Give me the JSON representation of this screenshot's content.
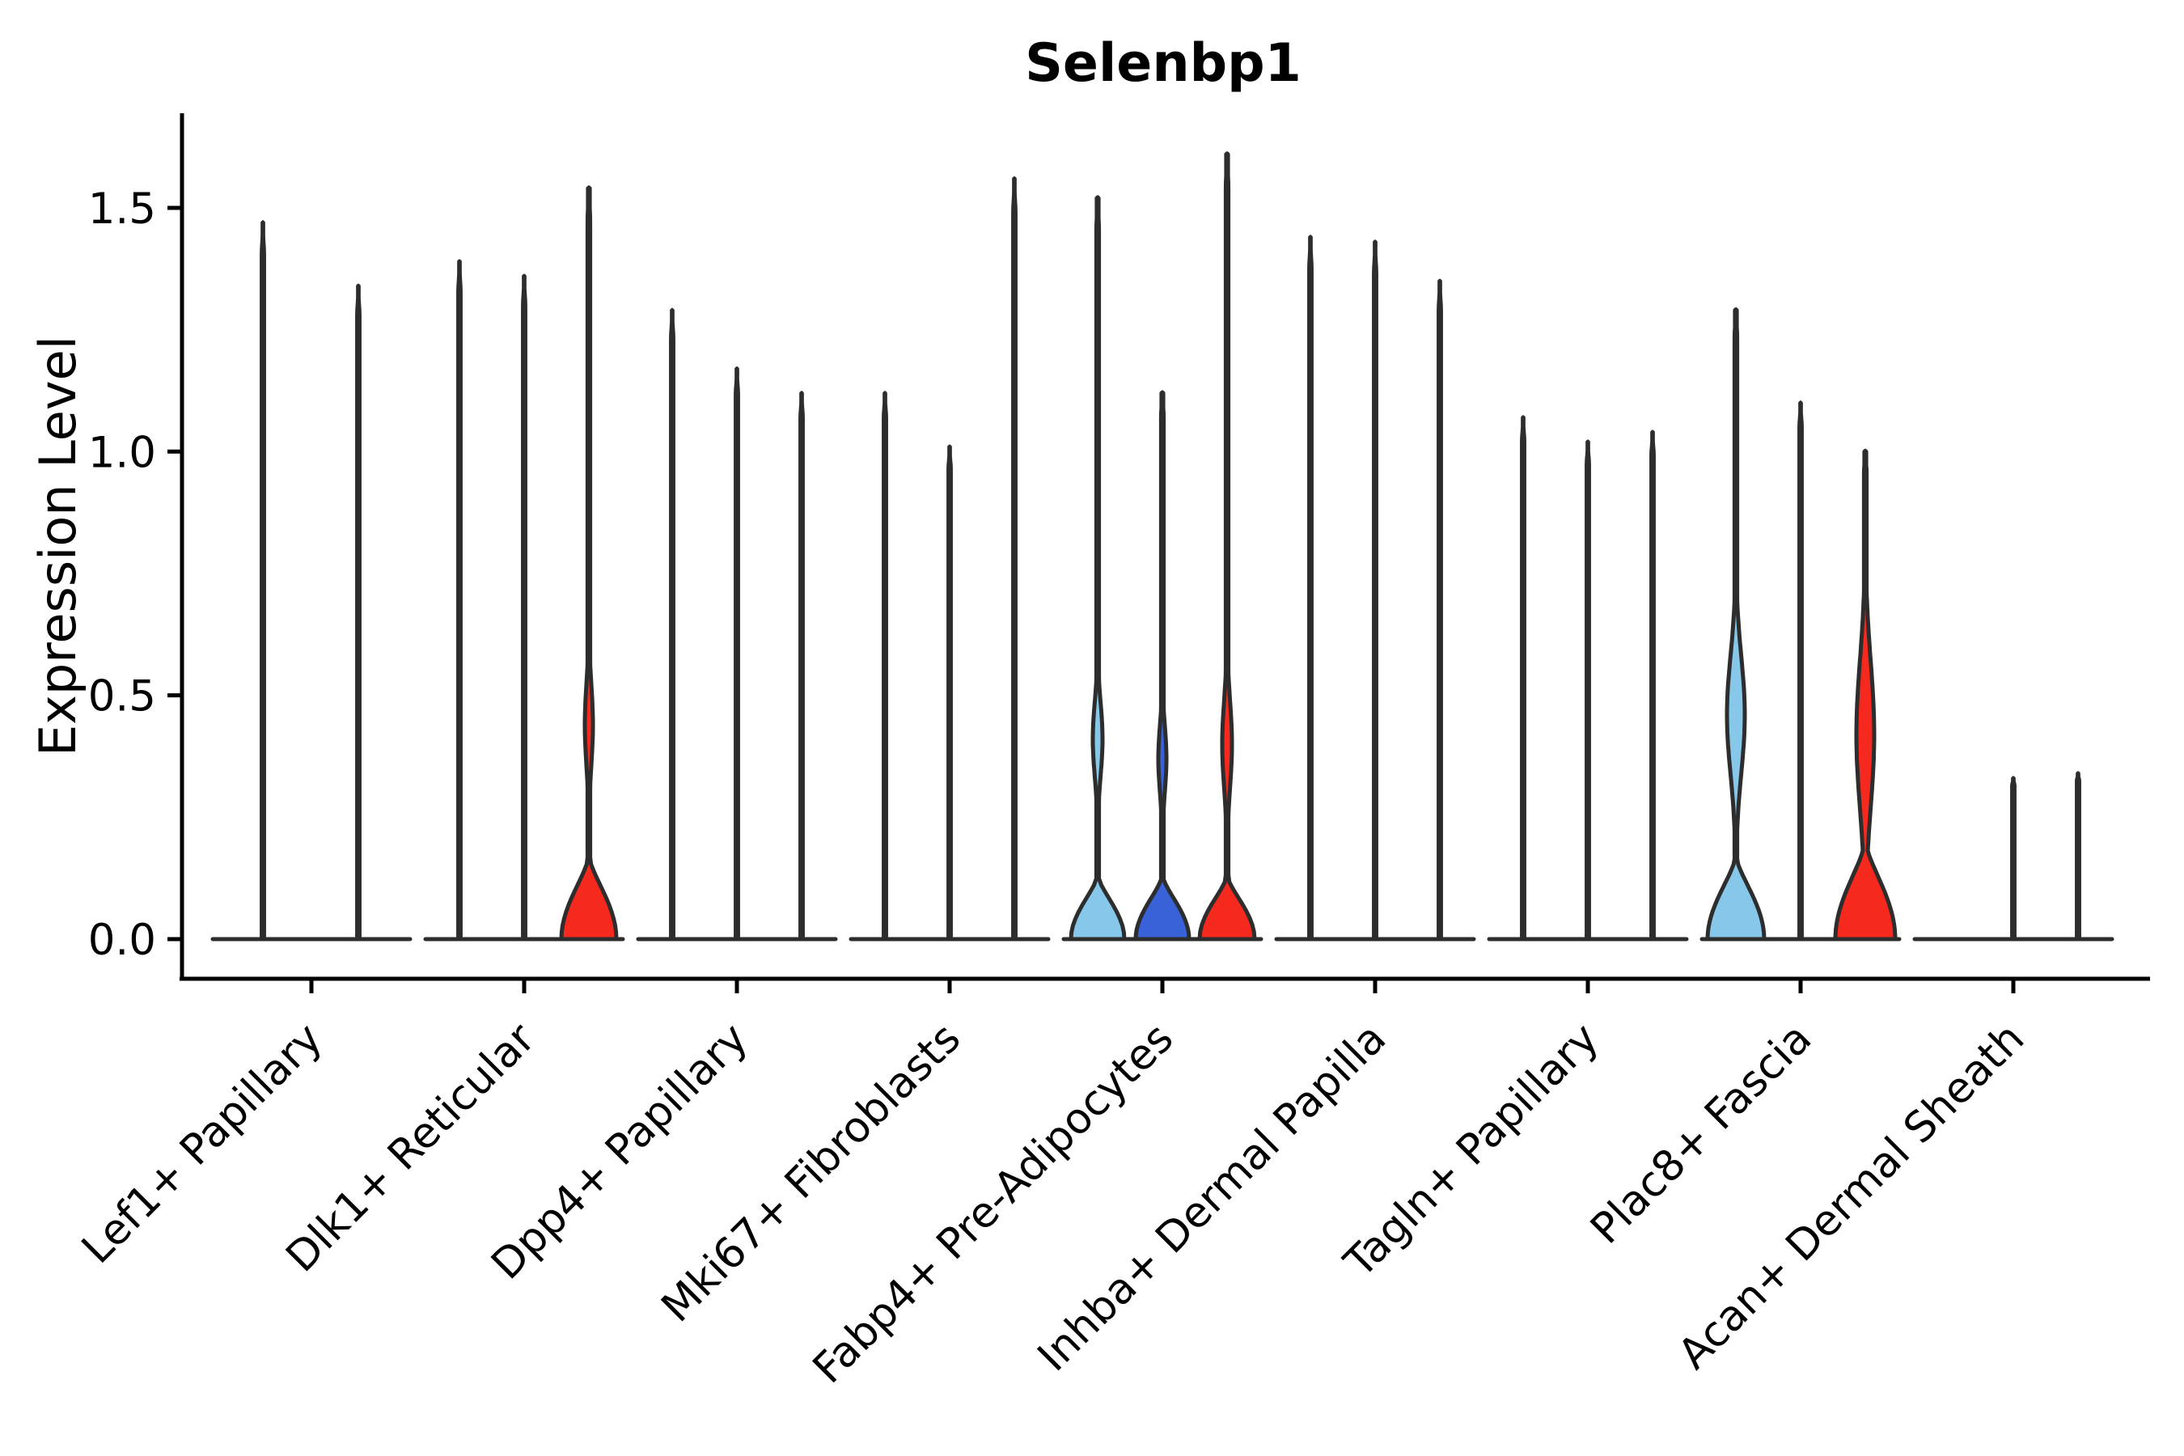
{
  "chart_data": {
    "type": "violin",
    "title": "Selenbp1",
    "ylabel": "Expression Level",
    "xlabel": "",
    "ytick_labels": [
      "0.0",
      "0.5",
      "1.0",
      "1.5"
    ],
    "ytick_values": [
      0.0,
      0.5,
      1.0,
      1.5
    ],
    "ylim": [
      -0.08,
      1.69
    ],
    "grid": false,
    "legend": "none",
    "colors": {
      "accent_lightblue": "#87C7E9",
      "accent_darkblue": "#3A62D8",
      "accent_red": "#F6291E",
      "line": "#2D2D2D",
      "axis": "#000000"
    },
    "categories": [
      "Lef1+ Papillary",
      "Dlk1+ Reticular",
      "Dpp4+ Papillary",
      "Mki67+ Fibroblasts",
      "Fabp4+ Pre-Adipocytes",
      "Inhba+ Dermal Papilla",
      "Tagln+ Papillary",
      "Plac8+ Fascia",
      "Acan+ Dermal Sheath"
    ],
    "groups": [
      {
        "category": "Lef1+ Papillary",
        "violins": [
          {
            "dx": -60,
            "tip": 1.47,
            "fill": null
          },
          {
            "dx": 58,
            "tip": 1.34,
            "fill": null
          }
        ]
      },
      {
        "category": "Dlk1+ Reticular",
        "violins": [
          {
            "dx": -80,
            "tip": 1.39,
            "fill": null
          },
          {
            "dx": 0,
            "tip": 1.36,
            "fill": null
          },
          {
            "dx": 80,
            "tip": 1.54,
            "fill": "accent_red",
            "bell": {
              "top": 0.17,
              "hw": 34
            },
            "lens": {
              "lo": 0.27,
              "hi": 0.6,
              "peak": 0.44,
              "hw": 5
            }
          }
        ]
      },
      {
        "category": "Dpp4+ Papillary",
        "violins": [
          {
            "dx": -80,
            "tip": 1.29,
            "fill": null
          },
          {
            "dx": 0,
            "tip": 1.17,
            "fill": null
          },
          {
            "dx": 80,
            "tip": 1.12,
            "fill": null
          }
        ]
      },
      {
        "category": "Mki67+ Fibroblasts",
        "violins": [
          {
            "dx": -80,
            "tip": 1.12,
            "fill": null
          },
          {
            "dx": 0,
            "tip": 1.01,
            "fill": null
          },
          {
            "dx": 80,
            "tip": 1.56,
            "fill": null
          }
        ]
      },
      {
        "category": "Fabp4+ Pre-Adipocytes",
        "violins": [
          {
            "dx": -80,
            "tip": 1.52,
            "fill": "accent_lightblue",
            "bell": {
              "top": 0.13,
              "hw": 33
            },
            "lens": {
              "lo": 0.25,
              "hi": 0.55,
              "peak": 0.41,
              "hw": 6
            }
          },
          {
            "dx": 0,
            "tip": 1.12,
            "fill": "accent_darkblue",
            "bell": {
              "top": 0.13,
              "hw": 33
            },
            "lens": {
              "lo": 0.23,
              "hi": 0.5,
              "peak": 0.37,
              "hw": 5
            }
          },
          {
            "dx": 80,
            "tip": 1.61,
            "fill": "accent_red",
            "bell": {
              "top": 0.13,
              "hw": 34
            },
            "lens": {
              "lo": 0.21,
              "hi": 0.57,
              "peak": 0.4,
              "hw": 6
            }
          }
        ]
      },
      {
        "category": "Inhba+ Dermal Papilla",
        "violins": [
          {
            "dx": -80,
            "tip": 1.44,
            "fill": null
          },
          {
            "dx": 0,
            "tip": 1.43,
            "fill": null
          },
          {
            "dx": 80,
            "tip": 1.35,
            "fill": null
          }
        ]
      },
      {
        "category": "Tagln+ Papillary",
        "violins": [
          {
            "dx": -80,
            "tip": 1.07,
            "fill": null
          },
          {
            "dx": 0,
            "tip": 1.02,
            "fill": null
          },
          {
            "dx": 80,
            "tip": 1.04,
            "fill": null
          }
        ]
      },
      {
        "category": "Plac8+ Fascia",
        "violins": [
          {
            "dx": -80,
            "tip": 1.29,
            "fill": "accent_lightblue",
            "bell": {
              "top": 0.17,
              "hw": 35
            },
            "lens": {
              "lo": 0.25,
              "hi": 0.73,
              "peak": 0.46,
              "hw": 11
            }
          },
          {
            "dx": 0,
            "tip": 1.1,
            "fill": null
          },
          {
            "dx": 80,
            "tip": 1.0,
            "fill": "accent_red",
            "bell": {
              "top": 0.2,
              "hw": 37
            },
            "lens": {
              "lo": 0.22,
              "hi": 0.82,
              "peak": 0.42,
              "hw": 11
            }
          }
        ]
      },
      {
        "category": "Acan+ Dermal Sheath",
        "violins": [
          {
            "dx": 0,
            "tip": 0.33,
            "fill": null
          },
          {
            "dx": 80,
            "tip": 0.34,
            "fill": null
          }
        ]
      }
    ]
  }
}
